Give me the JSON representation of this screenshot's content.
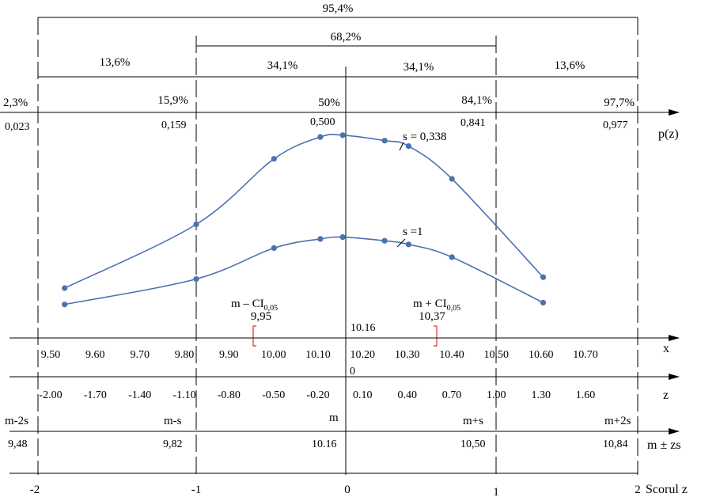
{
  "figure": {
    "percent_spans": {
      "total": "95,4%",
      "inner": "68,2%",
      "left_outer": "13,6%",
      "left_inner": "34,1%",
      "right_inner": "34,1%",
      "right_outer": "13,6%"
    },
    "cumulative_pct": [
      "2,3%",
      "15,9%",
      "50%",
      "84,1%",
      "97,7%"
    ],
    "cumulative_val": [
      "0,023",
      "0,159",
      "0,500",
      "0,841",
      "0,977"
    ],
    "pz_label": "p(z)",
    "x_axis_label": "x",
    "x_ticks": [
      "9.50",
      "9.60",
      "9.70",
      "9.80",
      "9.90",
      "10.00",
      "10.10",
      "10.20",
      "10.30",
      "10.40",
      "10.50",
      "10.60",
      "10.70"
    ],
    "mean_value": "10.16",
    "zero_mark": "0",
    "z_axis_label": "z",
    "z_ticks": [
      "-2.00",
      "-1.70",
      "-1.40",
      "-1.10",
      "-0.80",
      "-0.50",
      "-0.20",
      "0.10",
      "0.40",
      "0.70",
      "1.00",
      "1.30",
      "1.60"
    ],
    "m_labels": [
      "m-2s",
      "m-s",
      "m",
      "m+s",
      "m+2s"
    ],
    "m_values": [
      "9,48",
      "9,82",
      "10.16",
      "10,50",
      "10,84"
    ],
    "mzs_label": "m ± zs",
    "score_ticks": [
      "-2",
      "-1",
      "0",
      "1",
      "2"
    ],
    "score_label": "Scorul z",
    "ci_left": {
      "prefix": "m – CI",
      "sub": "0,05",
      "value": "9,95"
    },
    "ci_right": {
      "prefix": "m + CI",
      "sub": "0,05",
      "value": "10,37"
    },
    "curve_labels": {
      "upper": "s = 0,338",
      "lower": "s =1"
    },
    "line_color": "#4a72b0",
    "curves": {
      "upper": [
        [
          -1.88,
          0.2
        ],
        [
          -1.0,
          0.55
        ],
        [
          -0.48,
          0.91
        ],
        [
          -0.17,
          1.03
        ],
        [
          -0.02,
          1.04
        ],
        [
          0.26,
          1.01
        ],
        [
          0.42,
          0.98
        ],
        [
          0.71,
          0.8
        ],
        [
          1.32,
          0.26
        ]
      ],
      "lower": [
        [
          -1.88,
          0.11
        ],
        [
          -1.0,
          0.25
        ],
        [
          -0.48,
          0.42
        ],
        [
          -0.17,
          0.47
        ],
        [
          -0.02,
          0.48
        ],
        [
          0.26,
          0.46
        ],
        [
          0.42,
          0.44
        ],
        [
          0.71,
          0.37
        ],
        [
          1.32,
          0.12
        ]
      ]
    }
  }
}
